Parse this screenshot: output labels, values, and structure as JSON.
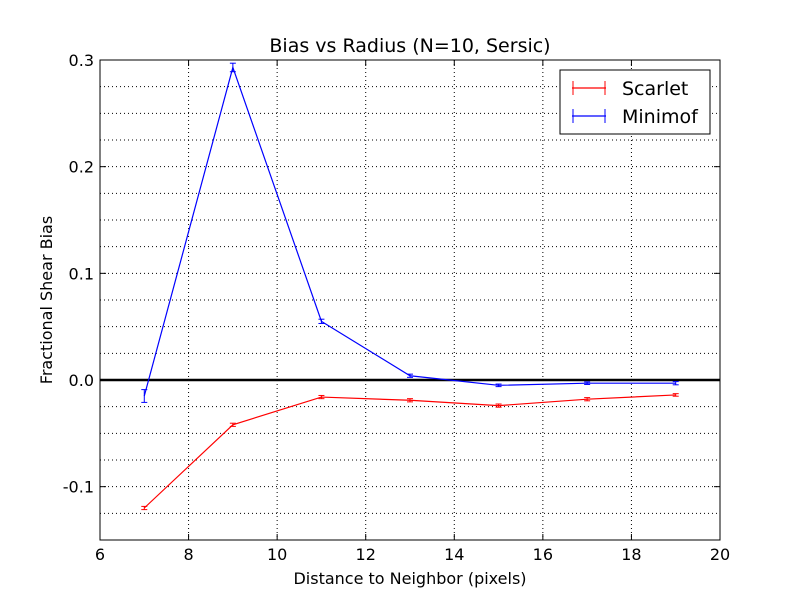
{
  "chart_data": {
    "type": "line",
    "title": "Bias vs Radius (N=10, Sersic)",
    "xlabel": "Distance to Neighbor (pixels)",
    "ylabel": "Fractional Shear Bias",
    "xlim": [
      6,
      20
    ],
    "ylim": [
      -0.15,
      0.3
    ],
    "xticks": [
      6,
      8,
      10,
      12,
      14,
      16,
      18,
      20
    ],
    "xtick_labels": [
      "6",
      "8",
      "10",
      "12",
      "14",
      "16",
      "18",
      "20"
    ],
    "yticks": [
      -0.1,
      0.0,
      0.1,
      0.2,
      0.3
    ],
    "ytick_labels": [
      "-0.1",
      "0.0",
      "0.1",
      "0.2",
      "0.3"
    ],
    "grid": true,
    "legend_position": "top-right",
    "reference_line_y": 0,
    "series": [
      {
        "name": "Scarlet",
        "color": "#ff0000",
        "x": [
          7,
          9,
          11,
          13,
          15,
          17,
          19
        ],
        "y": [
          -0.12,
          -0.042,
          -0.016,
          -0.019,
          -0.024,
          -0.018,
          -0.014
        ],
        "yerr": [
          0.0015,
          0.0015,
          0.0015,
          0.0015,
          0.0015,
          0.0015,
          0.0012
        ]
      },
      {
        "name": "Minimof",
        "color": "#0000ff",
        "x": [
          7,
          9,
          11,
          13,
          15,
          17,
          19
        ],
        "y": [
          -0.015,
          0.293,
          0.055,
          0.004,
          -0.005,
          -0.003,
          -0.003
        ],
        "yerr": [
          0.006,
          0.004,
          0.002,
          0.0015,
          0.0012,
          0.0012,
          0.0015
        ]
      }
    ]
  }
}
